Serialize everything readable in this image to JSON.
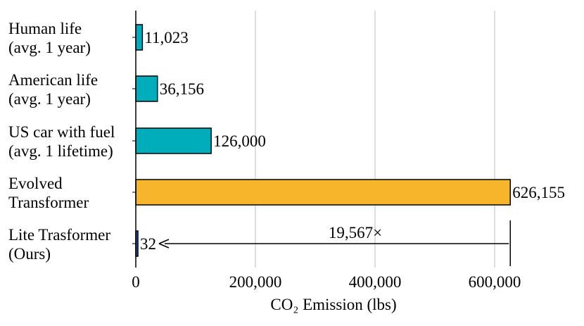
{
  "chart_data": {
    "type": "bar",
    "orientation": "horizontal",
    "categories": [
      {
        "line1": "Human life",
        "line2": "(avg. 1 year)"
      },
      {
        "line1": "American life",
        "line2": "(avg. 1 year)"
      },
      {
        "line1": "US car with fuel",
        "line2": "(avg. 1 lifetime)"
      },
      {
        "line1": "Evolved",
        "line2": "Transformer"
      },
      {
        "line1": "Lite Trasformer",
        "line2": "(Ours)"
      }
    ],
    "values": [
      11023,
      36156,
      126000,
      626155,
      32
    ],
    "value_labels": [
      "11,023",
      "36,156",
      "126,000",
      "626,155",
      "32"
    ],
    "bar_colors": [
      "#00AEBB",
      "#00AEBB",
      "#00AEBB",
      "#F7B52C",
      "#2B5597"
    ],
    "xlabel": "CO₂ Emission (lbs)",
    "xlim": [
      0,
      700000
    ],
    "xticks": [
      0,
      200000,
      400000,
      600000
    ],
    "xtick_labels": [
      "0",
      "200,000",
      "400,000",
      "600,000"
    ],
    "grid": "vertical",
    "annotation": {
      "text": "19,567×",
      "from_value": 626155,
      "to_value": 32
    }
  }
}
